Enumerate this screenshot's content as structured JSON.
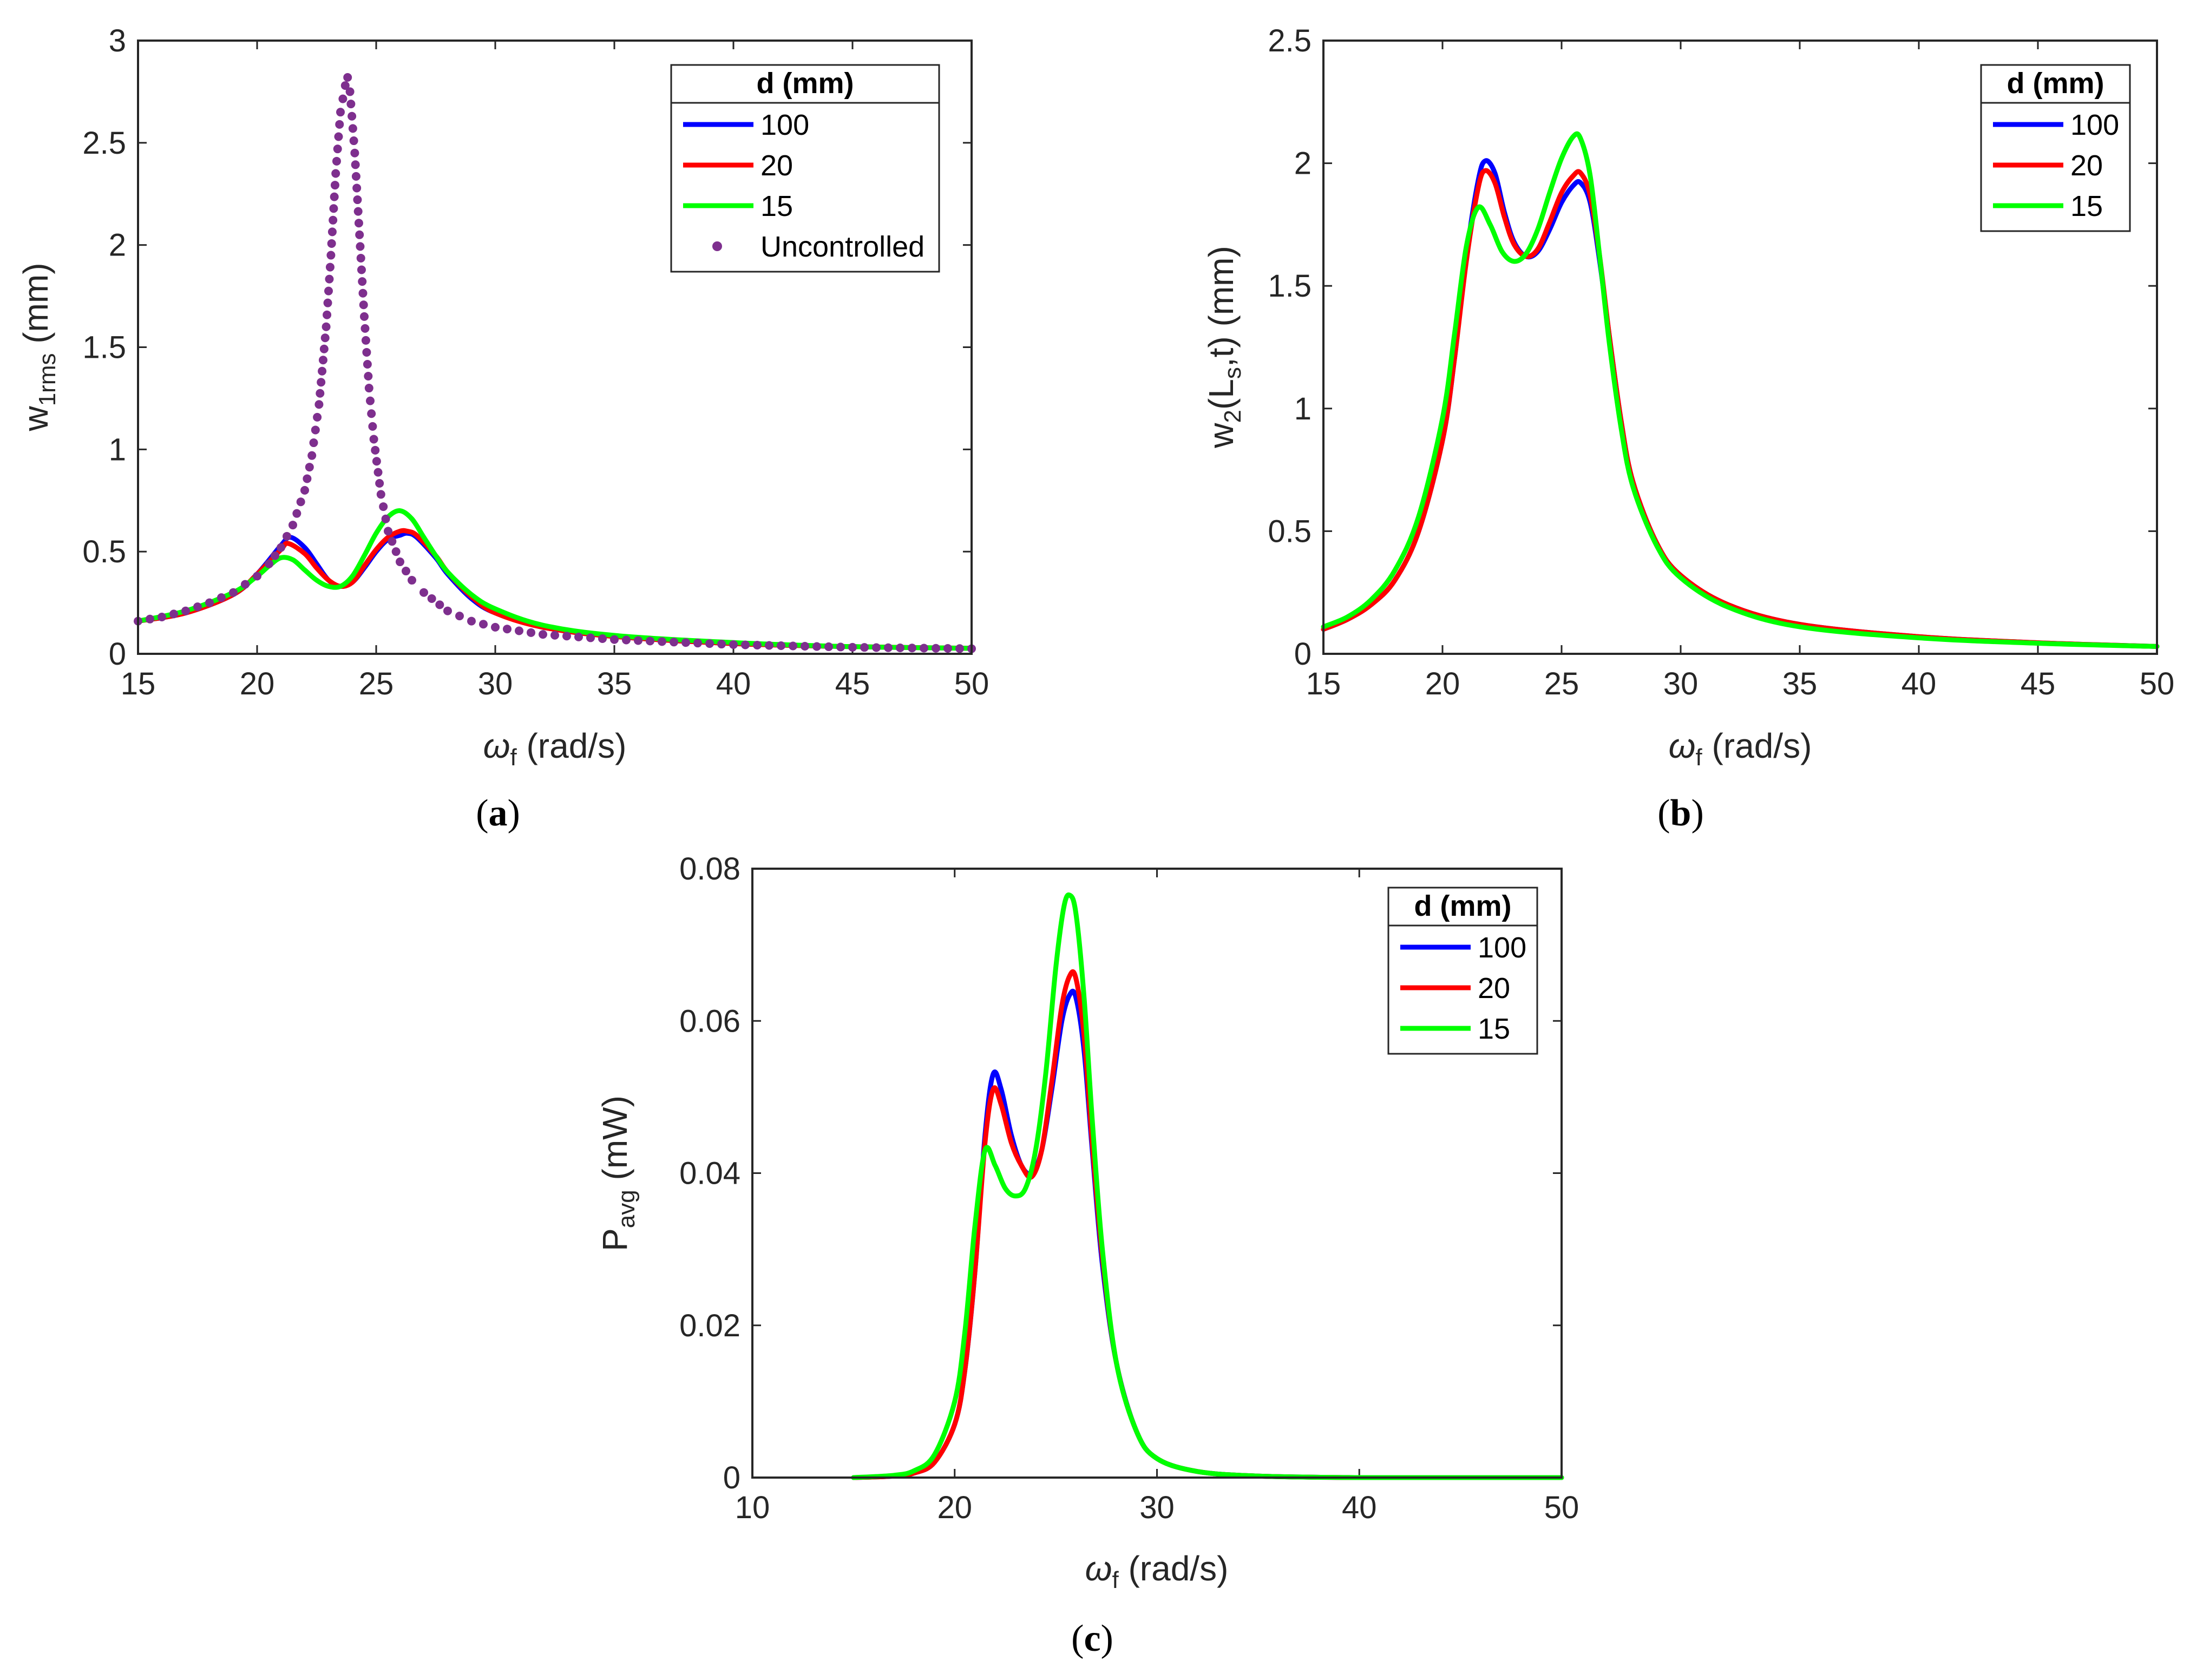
{
  "colors": {
    "d100": "#0000ff",
    "d20": "#ff0000",
    "d15": "#00ff00",
    "uncontrolled": "#7e2f8e",
    "axis": "#262626"
  },
  "chart_data": [
    {
      "panel": "a",
      "type": "line",
      "caption": {
        "open": "(",
        "letter": "a",
        "close": ")"
      },
      "ylabel": {
        "main": "w",
        "sub": "1rms",
        "rest": " (mm)"
      },
      "xlabel": {
        "main": "ω",
        "sub": "f",
        "rest": " (rad/s)"
      },
      "xlim": [
        15,
        50
      ],
      "ylim": [
        0,
        3
      ],
      "xticks": [
        15,
        20,
        25,
        30,
        35,
        40,
        45,
        50
      ],
      "xtick_labels": [
        "15",
        "20",
        "25",
        "30",
        "35",
        "40",
        "45",
        "50"
      ],
      "yticks": [
        0,
        0.5,
        1,
        1.5,
        2,
        2.5,
        3
      ],
      "ytick_labels": [
        "0",
        "0.5",
        "1",
        "1.5",
        "2",
        "2.5",
        "3"
      ],
      "legend": {
        "title": "d (mm)",
        "position": "top-right",
        "entries": [
          "100",
          "20",
          "15",
          "Uncontrolled"
        ]
      },
      "series": [
        {
          "name": "100",
          "style": "line",
          "color_key": "d100",
          "x": [
            15,
            17,
            19,
            20,
            21,
            21.4,
            22,
            22.5,
            23,
            23.5,
            24,
            24.5,
            25,
            25.5,
            26,
            26.3,
            26.7,
            27.5,
            28,
            29,
            30,
            32,
            35,
            40,
            45,
            50
          ],
          "y": [
            0.16,
            0.2,
            0.29,
            0.39,
            0.53,
            0.57,
            0.52,
            0.44,
            0.36,
            0.33,
            0.35,
            0.42,
            0.5,
            0.56,
            0.58,
            0.59,
            0.57,
            0.47,
            0.39,
            0.27,
            0.2,
            0.13,
            0.085,
            0.05,
            0.035,
            0.027
          ]
        },
        {
          "name": "20",
          "style": "line",
          "color_key": "d20",
          "x": [
            15,
            17,
            19,
            20,
            21,
            21.3,
            22,
            22.5,
            23,
            23.5,
            24,
            24.5,
            25,
            25.5,
            26,
            26.3,
            26.7,
            27.5,
            28,
            29,
            30,
            32,
            35,
            40,
            45,
            50
          ],
          "y": [
            0.16,
            0.2,
            0.29,
            0.39,
            0.51,
            0.54,
            0.49,
            0.42,
            0.36,
            0.33,
            0.35,
            0.43,
            0.51,
            0.57,
            0.6,
            0.6,
            0.58,
            0.48,
            0.4,
            0.28,
            0.2,
            0.13,
            0.085,
            0.05,
            0.035,
            0.027
          ]
        },
        {
          "name": "15",
          "style": "line",
          "color_key": "d15",
          "x": [
            15,
            17,
            19,
            20,
            20.5,
            21,
            21.5,
            22,
            22.5,
            23,
            23.5,
            24,
            24.5,
            25,
            25.5,
            26,
            26.5,
            27,
            27.5,
            28,
            29,
            30,
            32,
            35,
            40,
            45,
            50
          ],
          "y": [
            0.16,
            0.21,
            0.3,
            0.38,
            0.43,
            0.47,
            0.46,
            0.41,
            0.36,
            0.33,
            0.33,
            0.38,
            0.48,
            0.59,
            0.67,
            0.7,
            0.66,
            0.57,
            0.48,
            0.4,
            0.29,
            0.22,
            0.14,
            0.09,
            0.055,
            0.035,
            0.027
          ]
        },
        {
          "name": "Uncontrolled",
          "style": "markers",
          "color_key": "uncontrolled",
          "x": [
            15,
            16,
            17,
            18,
            19,
            20,
            20.5,
            21,
            21.5,
            22,
            22.3,
            22.6,
            22.9,
            23.1,
            23.3,
            23.5,
            23.7,
            23.8,
            23.9,
            24.1,
            24.3,
            24.5,
            24.7,
            24.9,
            25.2,
            25.5,
            26,
            26.5,
            27,
            28,
            29,
            30,
            32,
            35,
            40,
            45,
            50
          ],
          "y": [
            0.16,
            0.18,
            0.21,
            0.25,
            0.3,
            0.38,
            0.44,
            0.52,
            0.63,
            0.8,
            0.97,
            1.22,
            1.6,
            1.95,
            2.35,
            2.65,
            2.78,
            2.82,
            2.75,
            2.45,
            2.05,
            1.65,
            1.3,
            1.05,
            0.78,
            0.6,
            0.45,
            0.36,
            0.3,
            0.21,
            0.16,
            0.13,
            0.095,
            0.07,
            0.045,
            0.032,
            0.025
          ]
        }
      ]
    },
    {
      "panel": "b",
      "type": "line",
      "caption": {
        "open": "(",
        "letter": "b",
        "close": ")"
      },
      "ylabel": {
        "main": "w",
        "sub1": "2",
        "mid": "(L",
        "sub2": "s",
        "rest": ",t) (mm)"
      },
      "xlabel": {
        "main": "ω",
        "sub": "f",
        "rest": " (rad/s)"
      },
      "xlim": [
        15,
        50
      ],
      "ylim": [
        0,
        2.5
      ],
      "xticks": [
        15,
        20,
        25,
        30,
        35,
        40,
        45,
        50
      ],
      "xtick_labels": [
        "15",
        "20",
        "25",
        "30",
        "35",
        "40",
        "45",
        "50"
      ],
      "yticks": [
        0,
        0.5,
        1,
        1.5,
        2,
        2.5
      ],
      "ytick_labels": [
        "0",
        "0.5",
        "1",
        "1.5",
        "2",
        "2.5"
      ],
      "legend": {
        "title": "d (mm)",
        "position": "top-right",
        "entries": [
          "100",
          "20",
          "15"
        ]
      },
      "series": [
        {
          "name": "100",
          "style": "line",
          "color_key": "d100",
          "x": [
            15,
            16,
            17,
            18,
            19,
            20,
            20.5,
            21,
            21.5,
            21.8,
            22.2,
            22.6,
            23,
            23.5,
            24,
            24.5,
            25,
            25.5,
            25.8,
            26.2,
            26.6,
            27,
            27.5,
            28,
            29,
            30,
            32,
            35,
            40,
            45,
            50
          ],
          "y": [
            0.1,
            0.14,
            0.2,
            0.3,
            0.5,
            0.87,
            1.2,
            1.62,
            1.93,
            2.01,
            1.96,
            1.8,
            1.68,
            1.62,
            1.64,
            1.73,
            1.84,
            1.91,
            1.92,
            1.84,
            1.6,
            1.3,
            0.95,
            0.7,
            0.45,
            0.32,
            0.2,
            0.12,
            0.07,
            0.045,
            0.03
          ]
        },
        {
          "name": "20",
          "style": "line",
          "color_key": "d20",
          "x": [
            15,
            16,
            17,
            18,
            19,
            20,
            20.5,
            21,
            21.5,
            21.8,
            22.2,
            22.6,
            23,
            23.5,
            24,
            24.5,
            25,
            25.5,
            25.8,
            26.2,
            26.6,
            27,
            27.5,
            28,
            29,
            30,
            32,
            35,
            40,
            45,
            50
          ],
          "y": [
            0.1,
            0.14,
            0.2,
            0.3,
            0.5,
            0.87,
            1.2,
            1.6,
            1.9,
            1.97,
            1.92,
            1.78,
            1.67,
            1.62,
            1.65,
            1.76,
            1.88,
            1.95,
            1.96,
            1.87,
            1.62,
            1.3,
            0.95,
            0.7,
            0.45,
            0.32,
            0.2,
            0.12,
            0.07,
            0.045,
            0.03
          ]
        },
        {
          "name": "15",
          "style": "line",
          "color_key": "d15",
          "x": [
            15,
            16,
            17,
            18,
            19,
            20,
            20.5,
            21,
            21.5,
            22,
            22.5,
            23,
            23.5,
            24,
            24.5,
            25,
            25.5,
            25.8,
            26.2,
            26.6,
            27,
            27.5,
            28,
            29,
            30,
            32,
            35,
            40,
            45,
            50
          ],
          "y": [
            0.11,
            0.15,
            0.22,
            0.34,
            0.56,
            0.96,
            1.3,
            1.66,
            1.82,
            1.75,
            1.64,
            1.6,
            1.63,
            1.73,
            1.88,
            2.02,
            2.11,
            2.1,
            1.95,
            1.62,
            1.27,
            0.92,
            0.68,
            0.44,
            0.31,
            0.19,
            0.11,
            0.065,
            0.043,
            0.03
          ]
        }
      ]
    },
    {
      "panel": "c",
      "type": "line",
      "caption": {
        "open": "(",
        "letter": "c",
        "close": ")"
      },
      "ylabel": {
        "main": "P",
        "sub": "avg",
        "rest": " (mW)"
      },
      "xlabel": {
        "main": "ω",
        "sub": "f",
        "rest": " (rad/s)"
      },
      "xlim": [
        10,
        50
      ],
      "ylim": [
        0,
        0.08
      ],
      "xticks": [
        10,
        20,
        30,
        40,
        50
      ],
      "xtick_labels": [
        "10",
        "20",
        "30",
        "40",
        "50"
      ],
      "yticks": [
        0,
        0.02,
        0.04,
        0.06,
        0.08
      ],
      "ytick_labels": [
        "0",
        "0.02",
        "0.04",
        "0.06",
        "0.08"
      ],
      "legend": {
        "title": "d (mm)",
        "position": "top-right",
        "entries": [
          "100",
          "20",
          "15"
        ]
      },
      "series": [
        {
          "name": "100",
          "style": "line",
          "color_key": "d100",
          "x": [
            15,
            17,
            18,
            19,
            20,
            20.5,
            21,
            21.5,
            21.9,
            22.3,
            22.8,
            23.3,
            23.8,
            24.3,
            24.8,
            25.3,
            25.7,
            26,
            26.4,
            26.8,
            27.3,
            28,
            29,
            30,
            32,
            35,
            40,
            45,
            50
          ],
          "y": [
            0,
            0.0002,
            0.0006,
            0.002,
            0.007,
            0.014,
            0.027,
            0.045,
            0.053,
            0.051,
            0.045,
            0.041,
            0.04,
            0.043,
            0.051,
            0.06,
            0.0635,
            0.063,
            0.056,
            0.043,
            0.028,
            0.015,
            0.006,
            0.0025,
            0.0008,
            0.0002,
            0,
            0,
            0
          ]
        },
        {
          "name": "20",
          "style": "line",
          "color_key": "d20",
          "x": [
            15,
            17,
            18,
            19,
            20,
            20.5,
            21,
            21.5,
            21.9,
            22.3,
            22.8,
            23.3,
            23.8,
            24.3,
            24.8,
            25.3,
            25.7,
            26,
            26.4,
            26.8,
            27.3,
            28,
            29,
            30,
            32,
            35,
            40,
            45,
            50
          ],
          "y": [
            0,
            0.0002,
            0.0006,
            0.002,
            0.007,
            0.014,
            0.027,
            0.044,
            0.051,
            0.049,
            0.044,
            0.041,
            0.0395,
            0.043,
            0.052,
            0.062,
            0.066,
            0.0655,
            0.058,
            0.044,
            0.029,
            0.015,
            0.006,
            0.0025,
            0.0008,
            0.0002,
            0,
            0,
            0
          ]
        },
        {
          "name": "15",
          "style": "line",
          "color_key": "d15",
          "x": [
            15,
            17,
            18,
            19,
            20,
            20.5,
            21,
            21.5,
            22,
            22.5,
            23,
            23.5,
            24,
            24.5,
            25,
            25.4,
            25.7,
            26,
            26.4,
            26.8,
            27.3,
            28,
            29,
            30,
            32,
            35,
            40,
            45,
            50
          ],
          "y": [
            0,
            0.0003,
            0.0009,
            0.003,
            0.01,
            0.019,
            0.033,
            0.043,
            0.041,
            0.038,
            0.037,
            0.038,
            0.043,
            0.053,
            0.067,
            0.075,
            0.0765,
            0.074,
            0.063,
            0.047,
            0.03,
            0.015,
            0.006,
            0.0025,
            0.0008,
            0.0002,
            0,
            0,
            0
          ]
        }
      ]
    }
  ]
}
